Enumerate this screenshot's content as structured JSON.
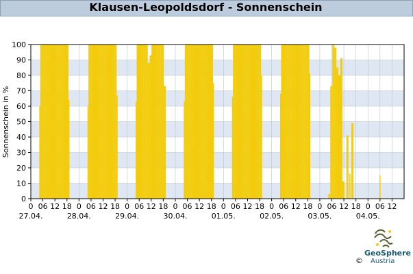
{
  "title": "Klausen-Leopoldsdorf - Sonnenschein",
  "logo": {
    "line1": "GeoSphere",
    "line2": "Austria",
    "copyright": "©",
    "icon": "geosphere-logo-icon"
  },
  "colors": {
    "bar": "#f2cc0d",
    "band_blue": "#dfe8f2",
    "band_white": "#ffffff",
    "band_shade": "#edf1f6",
    "grid": "#b7c3d0"
  },
  "chart_data": {
    "type": "bar",
    "ylabel": "Sonnenschein in %",
    "ylim": [
      0,
      100
    ],
    "yticks": [
      0,
      10,
      20,
      30,
      40,
      50,
      60,
      70,
      80,
      90,
      100
    ],
    "hour_ticks": [
      "0",
      "06",
      "12",
      "18",
      "0",
      "06",
      "12",
      "18",
      "0",
      "06",
      "12",
      "18",
      "0",
      "06",
      "12",
      "18",
      "0",
      "06",
      "12",
      "18",
      "0",
      "06",
      "12",
      "18",
      "0",
      "06",
      "12",
      "18",
      "0",
      "06",
      "12"
    ],
    "day_labels": [
      "27.04.",
      "28.04.",
      "29.04.",
      "30.04.",
      "01.05.",
      "02.05.",
      "03.05.",
      "04.05."
    ],
    "x_unit": "hours since 27.04. 00:00",
    "xlim": [
      0,
      186
    ],
    "bar_hours": [
      4.5,
      5,
      5.5,
      6,
      6.5,
      7,
      7.5,
      8,
      8.5,
      9,
      9.5,
      10,
      10.5,
      11,
      11.5,
      12,
      12.5,
      13,
      13.5,
      14,
      14.5,
      15,
      15.5,
      16,
      16.5,
      17,
      17.5,
      18,
      18.5,
      19,
      28.5,
      29,
      29.5,
      30,
      30.5,
      31,
      31.5,
      32,
      32.5,
      33,
      33.5,
      34,
      34.5,
      35,
      35.5,
      36,
      36.5,
      37,
      37.5,
      38,
      38.5,
      39,
      39.5,
      40,
      40.5,
      41,
      41.5,
      42,
      42.5,
      43,
      52.5,
      53,
      53.5,
      54,
      54.5,
      55,
      55.5,
      56,
      56.5,
      57,
      57.5,
      58,
      58.5,
      59,
      59.5,
      60,
      60.5,
      61,
      61.5,
      62,
      62.5,
      63,
      63.5,
      64,
      64.5,
      65,
      65.5,
      66,
      66.5,
      67,
      76.5,
      77,
      77.5,
      78,
      78.5,
      79,
      79.5,
      80,
      80.5,
      81,
      81.5,
      82,
      82.5,
      83,
      83.5,
      84,
      84.5,
      85,
      85.5,
      86,
      86.5,
      87,
      87.5,
      88,
      88.5,
      89,
      89.5,
      90,
      90.5,
      91,
      100.5,
      101,
      101.5,
      102,
      102.5,
      103,
      103.5,
      104,
      104.5,
      105,
      105.5,
      106,
      106.5,
      107,
      107.5,
      108,
      108.5,
      109,
      109.5,
      110,
      110.5,
      111,
      111.5,
      112,
      112.5,
      113,
      113.5,
      114,
      114.5,
      115,
      124.5,
      125,
      125.5,
      126,
      126.5,
      127,
      127.5,
      128,
      128.5,
      129,
      129.5,
      130,
      130.5,
      131,
      131.5,
      132,
      132.5,
      133,
      133.5,
      134,
      134.5,
      135,
      135.5,
      136,
      136.5,
      137,
      137.5,
      138,
      138.5,
      139,
      148.5,
      149,
      149.5,
      150,
      150.5,
      151,
      151.5,
      152,
      152.5,
      153,
      153.5,
      154,
      154.5,
      155,
      155.5,
      156,
      156.5,
      157,
      157.5,
      158,
      158.5,
      159,
      159.5,
      160,
      160.5,
      161,
      161.5,
      162,
      174
    ],
    "bar_values": [
      60,
      100,
      100,
      100,
      100,
      100,
      100,
      100,
      100,
      100,
      100,
      100,
      100,
      100,
      100,
      100,
      100,
      100,
      100,
      100,
      100,
      100,
      100,
      100,
      100,
      100,
      100,
      100,
      100,
      64,
      60,
      100,
      100,
      100,
      100,
      100,
      100,
      100,
      100,
      100,
      100,
      100,
      100,
      100,
      100,
      100,
      100,
      100,
      100,
      100,
      100,
      100,
      100,
      100,
      100,
      100,
      100,
      100,
      100,
      67,
      63,
      100,
      100,
      100,
      100,
      100,
      100,
      100,
      100,
      100,
      100,
      100,
      88,
      88,
      93,
      93,
      100,
      100,
      100,
      100,
      100,
      100,
      100,
      100,
      100,
      100,
      100,
      100,
      73,
      73,
      63,
      100,
      100,
      100,
      100,
      100,
      100,
      100,
      100,
      100,
      100,
      100,
      100,
      100,
      100,
      100,
      100,
      100,
      100,
      100,
      100,
      100,
      100,
      100,
      100,
      100,
      100,
      100,
      100,
      75,
      66,
      100,
      100,
      100,
      100,
      100,
      100,
      100,
      100,
      100,
      100,
      100,
      100,
      100,
      100,
      100,
      100,
      100,
      100,
      100,
      100,
      100,
      100,
      100,
      100,
      100,
      100,
      100,
      100,
      80,
      68,
      100,
      100,
      100,
      100,
      100,
      100,
      100,
      100,
      100,
      100,
      100,
      100,
      100,
      100,
      100,
      100,
      100,
      100,
      100,
      100,
      100,
      100,
      100,
      100,
      100,
      100,
      100,
      100,
      81,
      3,
      3,
      73,
      73,
      100,
      100,
      98,
      98,
      85,
      85,
      80,
      80,
      91,
      91,
      11,
      11,
      0,
      0,
      41,
      41,
      0,
      16,
      0,
      49,
      49,
      0,
      0,
      0,
      15
    ]
  }
}
